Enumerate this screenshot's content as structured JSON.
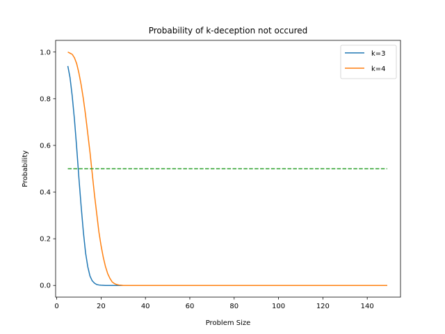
{
  "chart_data": {
    "type": "line",
    "title": "Probability of k-deception not occured",
    "xlabel": "Problem Size",
    "ylabel": "Probability",
    "xlim": [
      -0.5,
      155
    ],
    "ylim": [
      -0.05,
      1.05
    ],
    "xticks": [
      0,
      20,
      40,
      60,
      80,
      100,
      120,
      140
    ],
    "yticks": [
      0.0,
      0.2,
      0.4,
      0.6,
      0.8,
      1.0
    ],
    "xtick_labels": [
      "0",
      "20",
      "40",
      "60",
      "80",
      "100",
      "120",
      "140"
    ],
    "ytick_labels": [
      "0.0",
      "0.2",
      "0.4",
      "0.6",
      "0.8",
      "1.0"
    ],
    "legend_position": "top-right",
    "grid": false,
    "series": [
      {
        "name": "k=3",
        "color": "#1f77b4",
        "style": "solid",
        "x": [
          5,
          6,
          7,
          8,
          9,
          10,
          11,
          12,
          13,
          14,
          15,
          16,
          17,
          18,
          19,
          20,
          22,
          25,
          30,
          40,
          60,
          80,
          100,
          120,
          149
        ],
        "y": [
          0.94,
          0.89,
          0.81,
          0.71,
          0.59,
          0.46,
          0.34,
          0.23,
          0.14,
          0.08,
          0.04,
          0.02,
          0.01,
          0.004,
          0.002,
          0.001,
          0.0,
          0.0,
          0.0,
          0.0,
          0.0,
          0.0,
          0.0,
          0.0,
          0.0
        ]
      },
      {
        "name": "k=4",
        "color": "#ff7f0e",
        "style": "solid",
        "x": [
          5,
          6,
          7,
          8,
          9,
          10,
          11,
          12,
          13,
          14,
          15,
          16,
          17,
          18,
          19,
          20,
          21,
          22,
          23,
          24,
          25,
          26,
          27,
          28,
          29,
          30,
          35,
          40,
          60,
          80,
          100,
          120,
          149
        ],
        "y": [
          1.0,
          0.995,
          0.99,
          0.975,
          0.95,
          0.91,
          0.86,
          0.8,
          0.73,
          0.65,
          0.57,
          0.48,
          0.39,
          0.31,
          0.23,
          0.17,
          0.12,
          0.08,
          0.05,
          0.03,
          0.015,
          0.008,
          0.004,
          0.002,
          0.001,
          0.0,
          0.0,
          0.0,
          0.0,
          0.0,
          0.0,
          0.0,
          0.0
        ]
      },
      {
        "name": "",
        "color": "#2ca02c",
        "style": "dashed",
        "x": [
          5,
          149
        ],
        "y": [
          0.5,
          0.5
        ]
      }
    ]
  }
}
